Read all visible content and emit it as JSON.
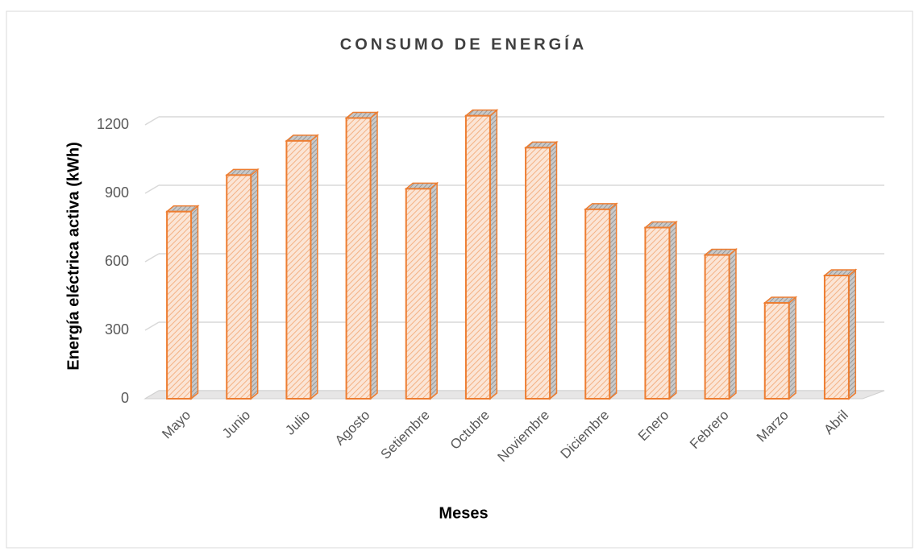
{
  "chart_data": {
    "type": "bar",
    "title": "CONSUMO DE ENERGÍA",
    "x_label": "Meses",
    "y_label": "Energía eléctrica activa (kWh)",
    "categories": [
      "Mayo",
      "Junio",
      "Julio",
      "Agosto",
      "Setiembre",
      "Octubre",
      "Noviembre",
      "Diciembre",
      "Enero",
      "Febrero",
      "Marzo",
      "Abril"
    ],
    "values": [
      820,
      980,
      1130,
      1230,
      920,
      1240,
      1100,
      830,
      750,
      630,
      420,
      540
    ],
    "color": "#ed7d31",
    "ylim": [
      0,
      1200
    ],
    "yticks": [
      0,
      300,
      600,
      900,
      1200
    ],
    "grid": true
  }
}
